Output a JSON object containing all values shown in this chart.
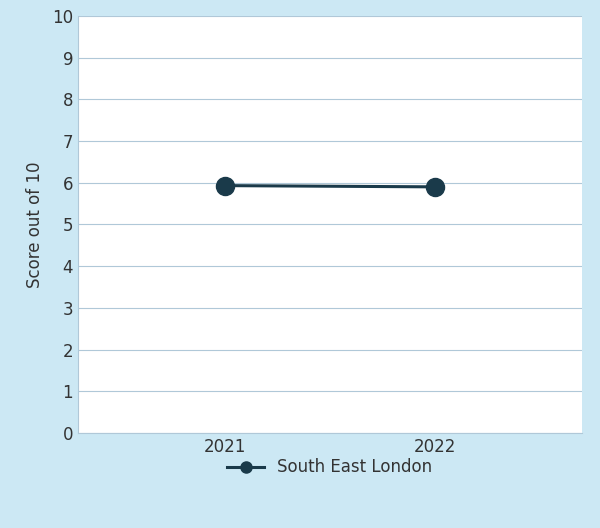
{
  "x": [
    2021,
    2022
  ],
  "y": [
    5.93,
    5.9
  ],
  "line_color": "#1a3a4a",
  "marker_color": "#1a3a4a",
  "marker_size": 13,
  "line_width": 2.2,
  "ylabel": "Score out of 10",
  "ylim": [
    0,
    10
  ],
  "yticks": [
    0,
    1,
    2,
    3,
    4,
    5,
    6,
    7,
    8,
    9,
    10
  ],
  "xticks": [
    2021,
    2022
  ],
  "xticklabels": [
    "2021",
    "2022"
  ],
  "legend_label": "South East London",
  "background_color": "#cce8f4",
  "plot_bg_color": "#ffffff",
  "grid_color": "#b0c8d8",
  "tick_label_fontsize": 12,
  "ylabel_fontsize": 12,
  "legend_fontsize": 12
}
